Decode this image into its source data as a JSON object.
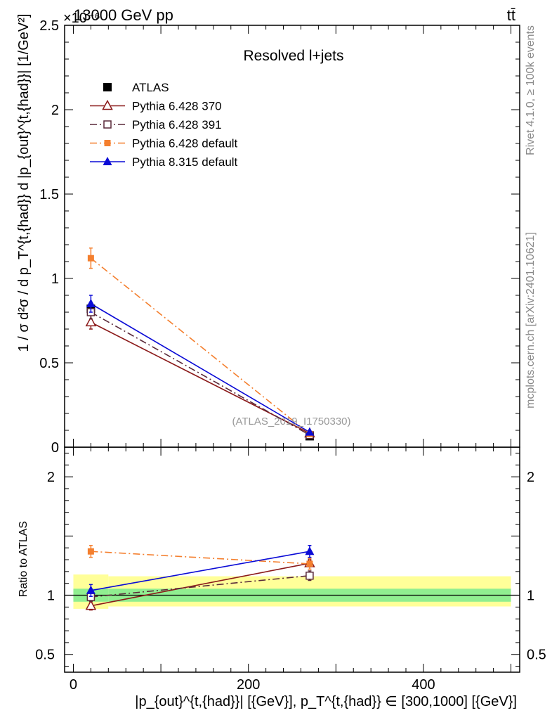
{
  "header": {
    "energy": "13000 GeV pp",
    "process": "tt̄",
    "exponent": "×10⁻⁶"
  },
  "side_text": {
    "rivet": "Rivet 4.1.0, ≥ 100k events",
    "mcplots": "mcplots.cern.ch [arXiv:2401.10621]"
  },
  "chart_data": [
    {
      "type": "line",
      "title": "Resolved l+jets",
      "watermark": "(ATLAS_2019_I1750330)",
      "ylabel": "1 / σ d²σ / d p_T^{t,{had}} d |p_{out}^{t,{had}}| [1/GeV²]",
      "xlim": [
        -10,
        510
      ],
      "ylim": [
        0,
        2.5
      ],
      "y_multiplier": "1e-6",
      "yticks": [
        0,
        0.5,
        1,
        1.5,
        2,
        2.5
      ],
      "ytick_labels": [
        "0",
        "0.5",
        "1",
        "1.5",
        "2",
        "2.5"
      ],
      "x": [
        20,
        270
      ],
      "series": [
        {
          "name": "ATLAS",
          "values": [
            0.82,
            0.065
          ],
          "yerr": [
            0.03,
            0.005
          ],
          "color": "#000000",
          "marker": "square-filled",
          "line": "none"
        },
        {
          "name": "Pythia 6.428 370",
          "values": [
            0.74,
            0.082
          ],
          "yerr": [
            0.04,
            0.006
          ],
          "color": "#8b1a1a",
          "marker": "triangle-open",
          "line": "solid"
        },
        {
          "name": "Pythia 6.428 391",
          "values": [
            0.8,
            0.072
          ],
          "yerr": [
            0.04,
            0.006
          ],
          "color": "#5a2a3a",
          "marker": "square-open",
          "line": "dashdot"
        },
        {
          "name": "Pythia 6.428 default",
          "values": [
            1.12,
            0.078
          ],
          "yerr": [
            0.06,
            0.006
          ],
          "color": "#f47f2e",
          "marker": "square-filled-small",
          "line": "dashdot"
        },
        {
          "name": "Pythia 8.315 default",
          "values": [
            0.85,
            0.089
          ],
          "yerr": [
            0.05,
            0.007
          ],
          "color": "#0b0bd6",
          "marker": "triangle-filled",
          "line": "solid"
        }
      ]
    },
    {
      "type": "line",
      "ylabel": "Ratio to ATLAS",
      "xlabel": "|p_{out}^{t,{had}}| [{GeV}], p_T^{t,{had}} ∈ [300,1000] [{GeV}]",
      "xlim": [
        -10,
        510
      ],
      "ylim": [
        0.35,
        2.25
      ],
      "xticks": [
        0,
        200,
        400
      ],
      "xtick_labels": [
        "0",
        "200",
        "400"
      ],
      "yticks": [
        0.5,
        1,
        2
      ],
      "ytick_labels": [
        "0.5",
        "1",
        "2"
      ],
      "x": [
        20,
        270
      ],
      "bands": [
        {
          "name": "stat+syst",
          "x_ranges": [
            [
              0,
              40
            ],
            [
              40,
              500
            ]
          ],
          "lo": [
            0.885,
            0.905
          ],
          "hi": [
            1.175,
            1.16
          ],
          "color": "#ffff99"
        },
        {
          "name": "stat",
          "x_ranges": [
            [
              0,
              40
            ],
            [
              40,
              500
            ]
          ],
          "lo": [
            0.945,
            0.945
          ],
          "hi": [
            1.055,
            1.055
          ],
          "color": "#90ee90"
        }
      ],
      "series": [
        {
          "name": "Pythia 6.428 370",
          "values": [
            0.91,
            1.27
          ],
          "yerr": [
            0.035,
            0.03
          ],
          "color": "#8b1a1a",
          "marker": "triangle-open",
          "line": "solid"
        },
        {
          "name": "Pythia 6.428 391",
          "values": [
            0.985,
            1.165
          ],
          "yerr": [
            0.035,
            0.04
          ],
          "color": "#5a2a3a",
          "marker": "square-open",
          "line": "dashdot"
        },
        {
          "name": "Pythia 6.428 default",
          "values": [
            1.37,
            1.265
          ],
          "yerr": [
            0.05,
            0.045
          ],
          "color": "#f47f2e",
          "marker": "square-filled-small",
          "line": "dashdot"
        },
        {
          "name": "Pythia 8.315 default",
          "values": [
            1.04,
            1.37
          ],
          "yerr": [
            0.05,
            0.05
          ],
          "color": "#0b0bd6",
          "marker": "triangle-filled",
          "line": "solid"
        }
      ]
    }
  ]
}
